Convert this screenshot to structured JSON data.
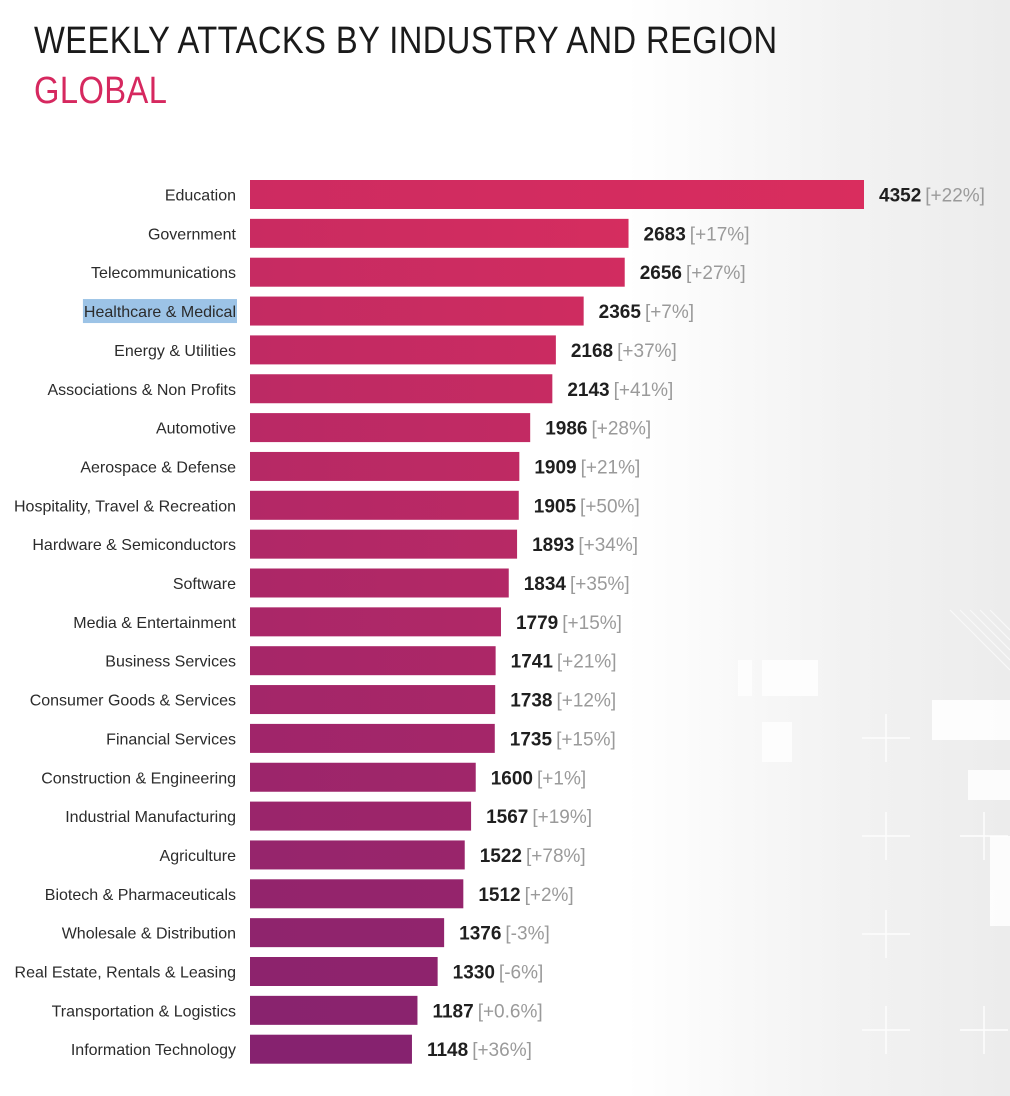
{
  "title": "WEEKLY ATTACKS BY INDUSTRY AND REGION",
  "subtitle": "GLOBAL",
  "colors": {
    "title": "#1a1a1a",
    "subtitle": "#d6285f",
    "bar_top": "#d92d5e",
    "bar_bottom": "#86226f",
    "highlight": "#9cc3e6",
    "change_text": "#9a9a9a"
  },
  "chart_data": {
    "type": "bar",
    "orientation": "horizontal",
    "title": "WEEKLY ATTACKS BY INDUSTRY AND REGION",
    "subtitle": "GLOBAL",
    "xlim": [
      0,
      4352
    ],
    "grid": false,
    "legend": "none",
    "highlighted_category": "Healthcare & Medical",
    "categories": [
      "Education",
      "Government",
      "Telecommunications",
      "Healthcare & Medical",
      "Energy & Utilities",
      "Associations & Non Profits",
      "Automotive",
      "Aerospace & Defense",
      "Hospitality, Travel & Recreation",
      "Hardware & Semiconductors",
      "Software",
      "Media & Entertainment",
      "Business Services",
      "Consumer Goods & Services",
      "Financial Services",
      "Construction & Engineering",
      "Industrial Manufacturing",
      "Agriculture",
      "Biotech & Pharmaceuticals",
      "Wholesale & Distribution",
      "Real Estate, Rentals & Leasing",
      "Transportation & Logistics",
      "Information Technology"
    ],
    "values": [
      4352,
      2683,
      2656,
      2365,
      2168,
      2143,
      1986,
      1909,
      1905,
      1893,
      1834,
      1779,
      1741,
      1738,
      1735,
      1600,
      1567,
      1522,
      1512,
      1376,
      1330,
      1187,
      1148
    ],
    "changes": [
      "[+22%]",
      "[+17%]",
      "[+27%]",
      "[+7%]",
      "[+37%]",
      "[+41%]",
      "[+28%]",
      "[+21%]",
      "[+50%]",
      "[+34%]",
      "[+35%]",
      "[+15%]",
      "[+21%]",
      "[+12%]",
      "[+15%]",
      "[+1%]",
      "[+19%]",
      "[+78%]",
      "[+2%]",
      "[-3%]",
      "[-6%]",
      "[+0.6%]",
      "[+36%]"
    ]
  }
}
